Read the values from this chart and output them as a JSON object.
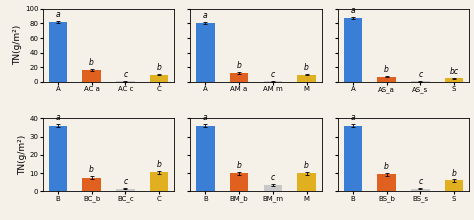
{
  "top_panels": [
    {
      "categories": [
        "A",
        "AC a",
        "AC c",
        "C"
      ],
      "values": [
        82,
        16,
        0.5,
        10
      ],
      "errors": [
        1.5,
        1.5,
        0.3,
        1.0
      ],
      "colors": [
        "#3a7fd5",
        "#e06020",
        "#c8c8c8",
        "#e0b020"
      ],
      "labels": [
        "a",
        "b",
        "c",
        "b"
      ],
      "ylim": [
        0,
        100
      ],
      "yticks": [
        0,
        20,
        40,
        60,
        80,
        100
      ]
    },
    {
      "categories": [
        "A",
        "AM a",
        "AM m",
        "M"
      ],
      "values": [
        81,
        12,
        0.5,
        10
      ],
      "errors": [
        1.5,
        1.5,
        0.3,
        1.0
      ],
      "colors": [
        "#3a7fd5",
        "#e06020",
        "#c8c8c8",
        "#e0b020"
      ],
      "labels": [
        "a",
        "b",
        "c",
        "b"
      ],
      "ylim": [
        0,
        100
      ],
      "yticks": [
        0,
        20,
        40,
        60,
        80,
        100
      ]
    },
    {
      "categories": [
        "A",
        "AS_a",
        "AS_s",
        "S"
      ],
      "values": [
        87,
        7,
        0.5,
        5
      ],
      "errors": [
        1.5,
        1.0,
        0.3,
        0.8
      ],
      "colors": [
        "#3a7fd5",
        "#e06020",
        "#c8c8c8",
        "#e0b020"
      ],
      "labels": [
        "a",
        "b",
        "c",
        "bc"
      ],
      "ylim": [
        0,
        100
      ],
      "yticks": [
        0,
        20,
        40,
        60,
        80,
        100
      ]
    }
  ],
  "bottom_panels": [
    {
      "categories": [
        "B",
        "BC_b",
        "BC_c",
        "C"
      ],
      "values": [
        36,
        7.5,
        1.5,
        10.5
      ],
      "errors": [
        1.0,
        0.8,
        0.3,
        0.8
      ],
      "colors": [
        "#3a7fd5",
        "#e06020",
        "#c8c8c8",
        "#e0b020"
      ],
      "labels": [
        "a",
        "b",
        "c",
        "b"
      ],
      "ylim": [
        0,
        40
      ],
      "yticks": [
        0,
        10,
        20,
        30,
        40
      ]
    },
    {
      "categories": [
        "B",
        "BM_b",
        "BM_m",
        "M"
      ],
      "values": [
        36,
        10,
        3.5,
        10
      ],
      "errors": [
        1.0,
        0.8,
        0.4,
        0.8
      ],
      "colors": [
        "#3a7fd5",
        "#e06020",
        "#c8c8c8",
        "#e0b020"
      ],
      "labels": [
        "a",
        "b",
        "c",
        "b"
      ],
      "ylim": [
        0,
        40
      ],
      "yticks": [
        0,
        10,
        20,
        30,
        40
      ]
    },
    {
      "categories": [
        "B",
        "BS_b",
        "BS_s",
        "S"
      ],
      "values": [
        36,
        9.5,
        1.5,
        6
      ],
      "errors": [
        1.0,
        0.8,
        0.3,
        0.6
      ],
      "colors": [
        "#3a7fd5",
        "#e06020",
        "#c8c8c8",
        "#e0b020"
      ],
      "labels": [
        "a",
        "b",
        "c",
        "b"
      ],
      "ylim": [
        0,
        40
      ],
      "yticks": [
        0,
        10,
        20,
        30,
        40
      ]
    }
  ],
  "ylabel": "TN(g/m²)",
  "bar_width": 0.55,
  "tick_fontsize": 5.0,
  "ylabel_fontsize": 6.5,
  "annotation_fontsize": 5.5,
  "bg_color": "#f5f0e8"
}
